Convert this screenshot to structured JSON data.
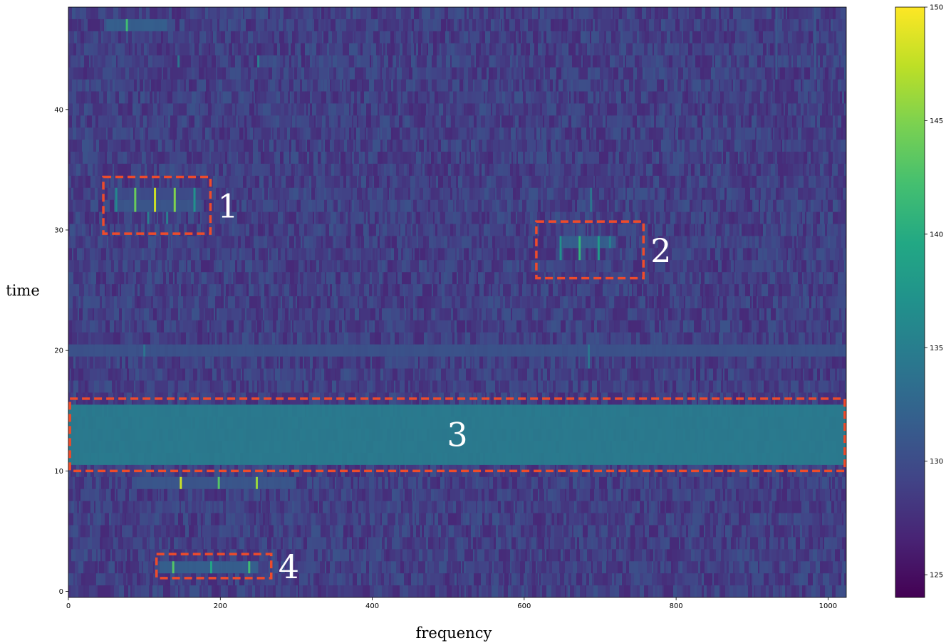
{
  "chart_data": {
    "type": "heatmap",
    "title": "",
    "xlabel": "frequency",
    "ylabel": "time",
    "xlim": [
      0,
      1024
    ],
    "ylim": [
      -0.5,
      48.5
    ],
    "x_ticks": [
      0,
      200,
      400,
      600,
      800,
      1000
    ],
    "y_ticks": [
      0,
      10,
      20,
      30,
      40
    ],
    "colormap": "viridis",
    "background_value": 129,
    "colorbar": {
      "min": 124,
      "max": 150,
      "ticks": [
        125,
        130,
        135,
        140,
        145,
        150
      ]
    },
    "bands": [
      {
        "x0": 0,
        "x1": 1024,
        "y0": 10.5,
        "y1": 15.5,
        "value": 135
      },
      {
        "x0": 90,
        "x1": 300,
        "y0": 8.5,
        "y1": 9.5,
        "value": 131
      },
      {
        "x0": 0,
        "x1": 1024,
        "y0": 19.5,
        "y1": 20.5,
        "value": 130.5
      },
      {
        "x0": 50,
        "x1": 130,
        "y0": 46.5,
        "y1": 47.5,
        "value": 132
      },
      {
        "x0": 60,
        "x1": 175,
        "y0": 32.5,
        "y1": 33.5,
        "value": 130
      },
      {
        "x0": 60,
        "x1": 175,
        "y0": 31.5,
        "y1": 32.5,
        "value": 131
      },
      {
        "x0": 650,
        "x1": 720,
        "y0": 28.5,
        "y1": 29.5,
        "value": 132
      },
      {
        "x0": 120,
        "x1": 250,
        "y0": 1.5,
        "y1": 2.5,
        "value": 132
      }
    ],
    "lines": [
      {
        "x": 77,
        "y0": 46.5,
        "y1": 47.5,
        "value": 142
      },
      {
        "x": 145,
        "y0": 43.5,
        "y1": 44.5,
        "value": 134
      },
      {
        "x": 250,
        "y0": 43.5,
        "y1": 44.5,
        "value": 135
      },
      {
        "x": 63,
        "y0": 31.5,
        "y1": 33.5,
        "value": 136
      },
      {
        "x": 88,
        "y0": 31.5,
        "y1": 33.5,
        "value": 144
      },
      {
        "x": 114,
        "y0": 31.5,
        "y1": 33.5,
        "value": 148
      },
      {
        "x": 140,
        "y0": 31.5,
        "y1": 33.5,
        "value": 145
      },
      {
        "x": 166,
        "y0": 31.5,
        "y1": 33.5,
        "value": 137
      },
      {
        "x": 105,
        "y0": 30.5,
        "y1": 31.5,
        "value": 135
      },
      {
        "x": 130,
        "y0": 30.5,
        "y1": 31.5,
        "value": 135
      },
      {
        "x": 648,
        "y0": 27.5,
        "y1": 29.5,
        "value": 137
      },
      {
        "x": 673,
        "y0": 27.5,
        "y1": 29.5,
        "value": 141
      },
      {
        "x": 698,
        "y0": 27.5,
        "y1": 29.5,
        "value": 138
      },
      {
        "x": 713,
        "y0": 28.5,
        "y1": 29.5,
        "value": 135
      },
      {
        "x": 688,
        "y0": 31.5,
        "y1": 33.5,
        "value": 134
      },
      {
        "x": 100,
        "y0": 19.5,
        "y1": 20.5,
        "value": 134
      },
      {
        "x": 685,
        "y0": 18.5,
        "y1": 20.5,
        "value": 134
      },
      {
        "x": 148,
        "y0": 8.5,
        "y1": 9.5,
        "value": 148
      },
      {
        "x": 198,
        "y0": 8.5,
        "y1": 9.5,
        "value": 143
      },
      {
        "x": 248,
        "y0": 8.5,
        "y1": 9.5,
        "value": 146
      },
      {
        "x": 138,
        "y0": 1.5,
        "y1": 2.5,
        "value": 143
      },
      {
        "x": 188,
        "y0": 1.5,
        "y1": 2.5,
        "value": 139
      },
      {
        "x": 238,
        "y0": 1.5,
        "y1": 2.5,
        "value": 142
      },
      {
        "x": 932,
        "y0": 42.5,
        "y1": 48.5,
        "value": 131
      },
      {
        "x": 983,
        "y0": 42.5,
        "y1": 48.5,
        "value": 131
      }
    ],
    "annotations": [
      {
        "label": "1",
        "x0": 46,
        "x1": 187,
        "y0": 29.7,
        "y1": 34.4,
        "color": "#ee4b2b"
      },
      {
        "label": "2",
        "x0": 616,
        "x1": 757,
        "y0": 26.0,
        "y1": 30.7,
        "color": "#ee4b2b"
      },
      {
        "label": "3",
        "x0": 2,
        "x1": 1022,
        "y0": 10.0,
        "y1": 16.0,
        "color": "#ee4b2b"
      },
      {
        "label": "4",
        "x0": 116,
        "x1": 267,
        "y0": 1.1,
        "y1": 3.1,
        "color": "#ee4b2b"
      }
    ]
  }
}
